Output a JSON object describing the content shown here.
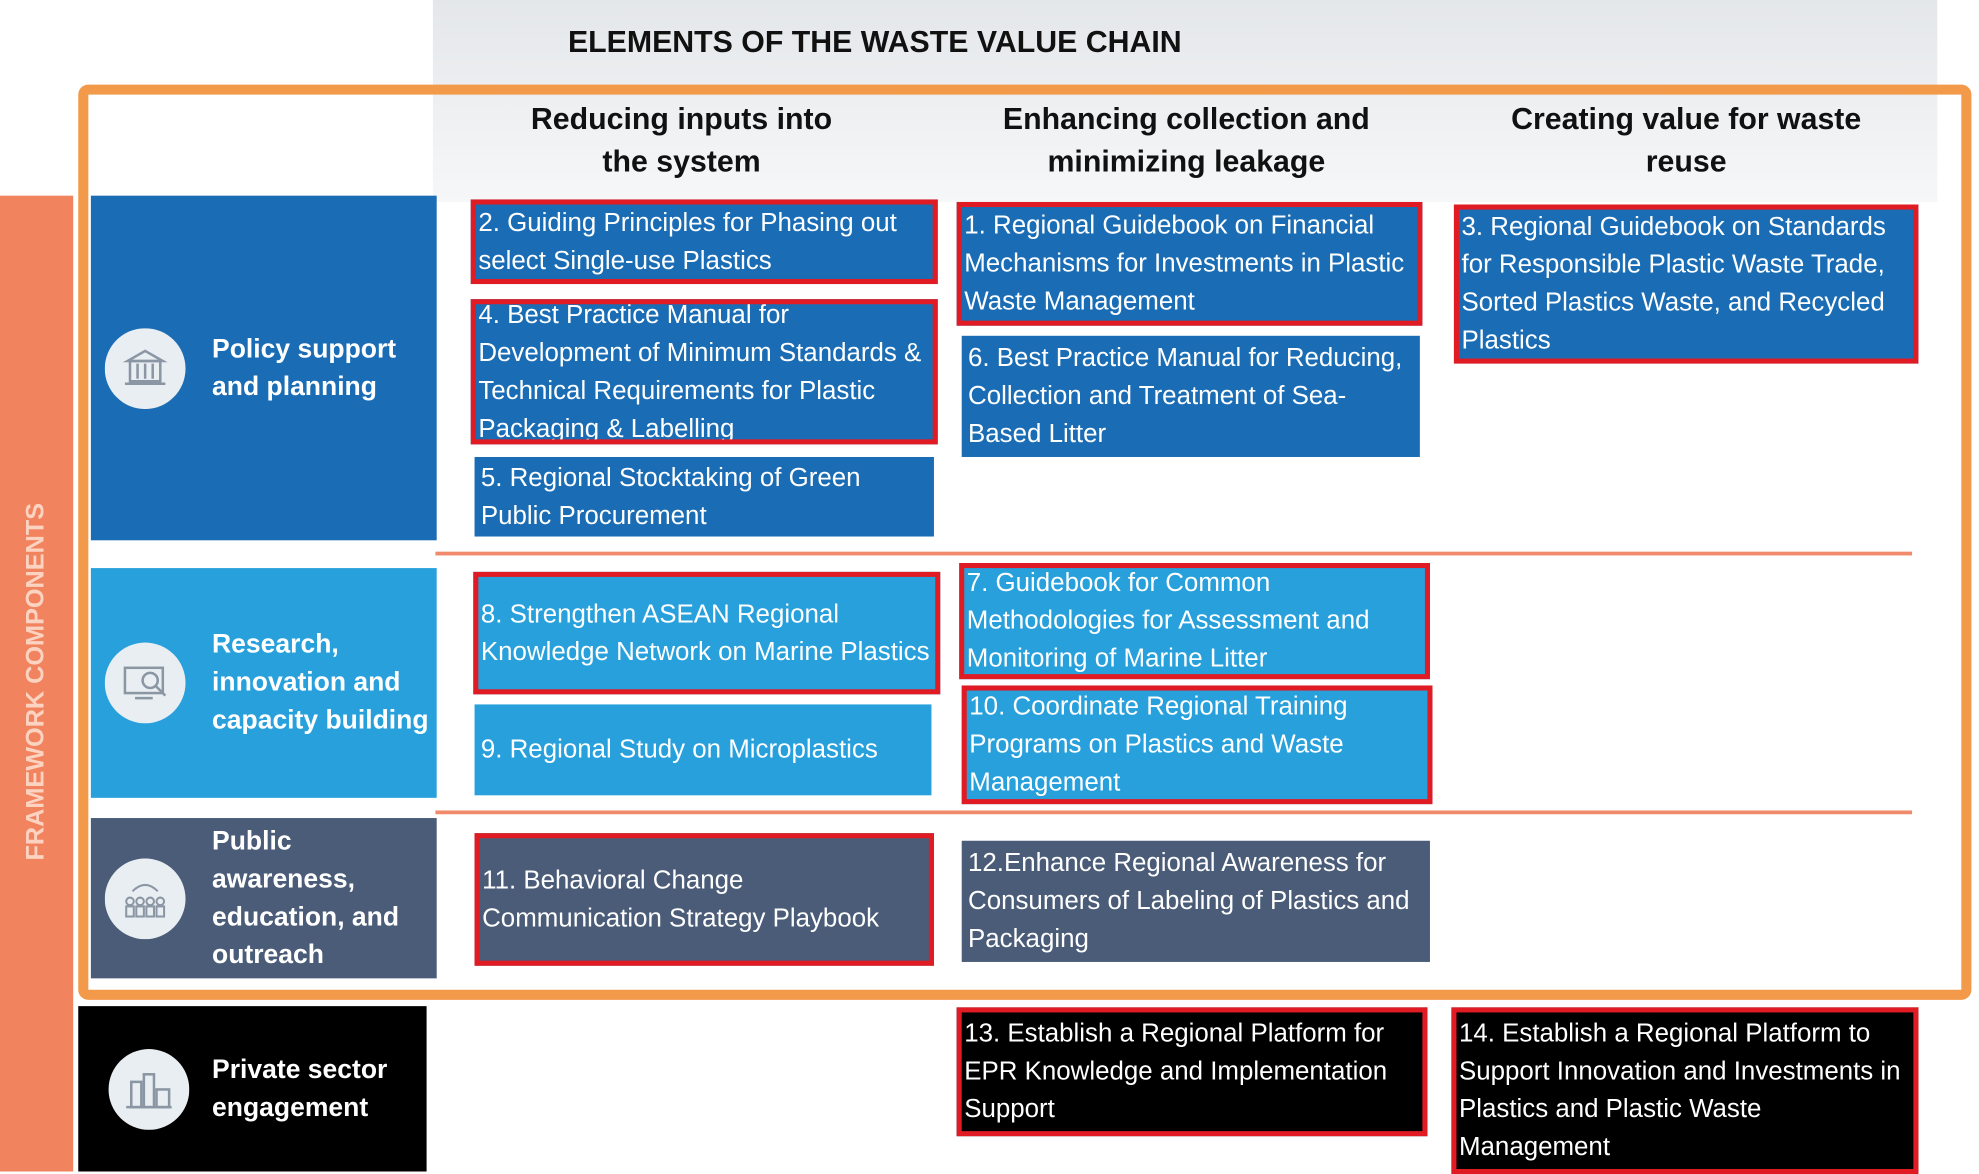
{
  "title": "ELEMENTS OF THE WASTE VALUE CHAIN",
  "side_label": "FRAMEWORK COMPONENTS",
  "columns": [
    "Reducing inputs into the system",
    "Enhancing collection and minimizing leakage",
    "Creating value for waste reuse"
  ],
  "rows": [
    {
      "label": "Policy support and planning",
      "color": "#1a6db5",
      "columns": [
        [
          {
            "text": "2. Guiding Principles for Phasing out select Single-use Plastics",
            "highlighted": true
          },
          {
            "text": "4. Best Practice Manual for Development of Minimum Standards & Technical Requirements for Plastic Packaging  & Labelling",
            "highlighted": true
          },
          {
            "text": "5. Regional Stocktaking of Green Public Procurement",
            "highlighted": false
          }
        ],
        [
          {
            "text": "1. Regional Guidebook on Financial Mechanisms for Investments in Plastic Waste Management",
            "highlighted": true
          },
          {
            "text": "6. Best Practice Manual for Reducing, Collection and Treatment of Sea-Based Litter",
            "highlighted": false
          }
        ],
        [
          {
            "text": "3. Regional Guidebook on Standards for Responsible Plastic Waste Trade, Sorted Plastics Waste, and Recycled Plastics",
            "highlighted": true
          }
        ]
      ]
    },
    {
      "label": "Research, innovation and capacity building",
      "color": "#27a0dc",
      "columns": [
        [
          {
            "text": "8. Strengthen ASEAN Regional Knowledge Network on Marine Plastics",
            "highlighted": true
          },
          {
            "text": "9. Regional Study on Microplastics",
            "highlighted": false
          }
        ],
        [
          {
            "text": "7. Guidebook for Common Methodologies for Assessment and Monitoring of Marine Litter",
            "highlighted": true
          },
          {
            "text": "10. Coordinate Regional Training Programs on Plastics and Waste Management",
            "highlighted": true
          }
        ],
        []
      ]
    },
    {
      "label": "Public awareness, education, and outreach",
      "color": "#4a5c78",
      "columns": [
        [
          {
            "text": "11. Behavioral Change Communication Strategy Playbook",
            "highlighted": true
          }
        ],
        [
          {
            "text": "12.Enhance Regional Awareness for Consumers of Labeling of Plastics and Packaging",
            "highlighted": false
          }
        ],
        []
      ]
    },
    {
      "label": "Private sector engagement",
      "color": "#000000",
      "columns": [
        [],
        [
          {
            "text": "13. Establish a Regional Platform for EPR Knowledge and Implementation Support",
            "highlighted": true
          }
        ],
        [
          {
            "text": "14. Establish a Regional Platform to Support Innovation and Investments in Plastics and Plastic Waste Management",
            "highlighted": true
          }
        ]
      ]
    }
  ]
}
